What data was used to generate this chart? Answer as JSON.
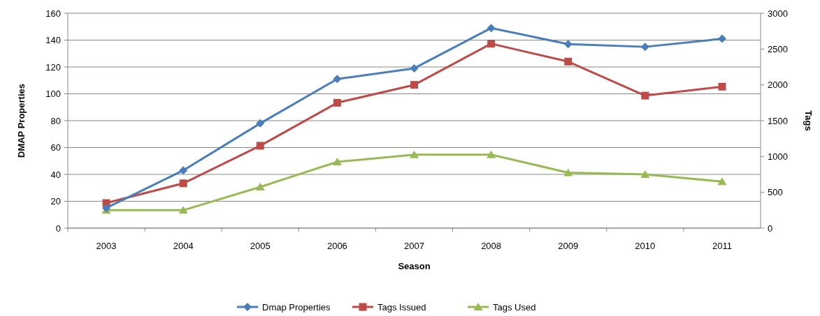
{
  "chart_data": {
    "type": "line",
    "xlabel": "Season",
    "ylabel": "DMAP Properties",
    "y2label": "Tags",
    "categories": [
      "2003",
      "2004",
      "2005",
      "2006",
      "2007",
      "2008",
      "2009",
      "2010",
      "2011"
    ],
    "series": [
      {
        "name": "Dmap Properties",
        "color": "#4a7ebb",
        "values": [
          15,
          43,
          78,
          111,
          119,
          149,
          137,
          135,
          141
        ],
        "marker": "diamond"
      },
      {
        "name": "Tags Issued",
        "color": "#be4b48",
        "axis": "y2",
        "values": [
          350,
          625,
          1150,
          1750,
          2000,
          2575,
          2325,
          1850,
          1975
        ],
        "marker": "square"
      },
      {
        "name": "Tags Used",
        "color": "#98b954",
        "axis": "y2",
        "values": [
          250,
          250,
          575,
          925,
          1025,
          1025,
          775,
          750,
          650
        ],
        "marker": "triangle"
      }
    ],
    "ylim": [
      0,
      160
    ],
    "yticks": [
      0,
      20,
      40,
      60,
      80,
      100,
      120,
      140,
      160
    ],
    "y2lim": [
      0,
      3000
    ],
    "y2ticks": [
      0,
      500,
      1000,
      1500,
      2000,
      2500,
      3000
    ],
    "grid": "y",
    "legend": "bottom",
    "line_style": "solid"
  }
}
